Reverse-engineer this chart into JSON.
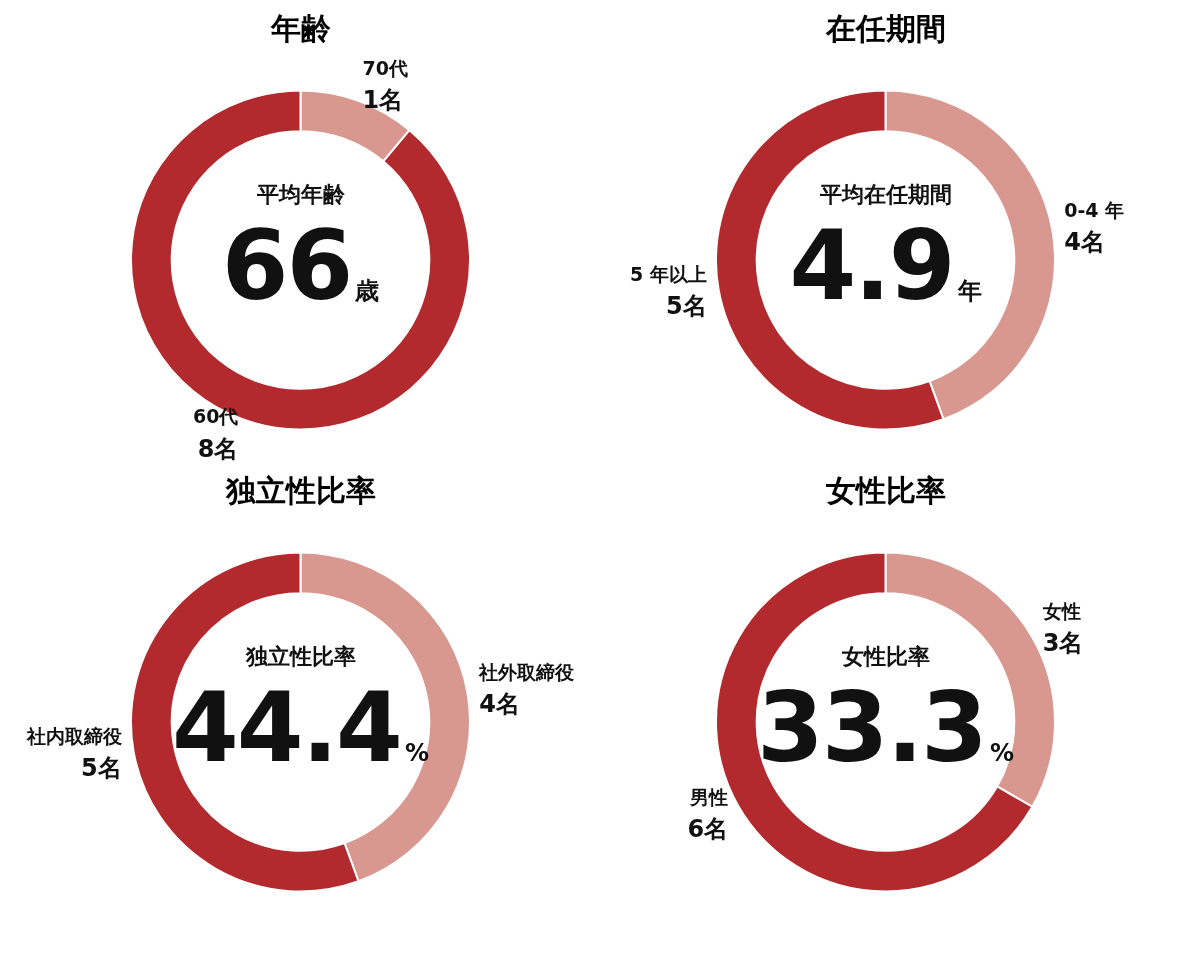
{
  "chart_data": [
    {
      "type": "donut",
      "title": "年齢",
      "categories": [
        "70代",
        "60代"
      ],
      "values": [
        1,
        8
      ],
      "colors": [
        "#d8978f",
        "#b22a2e"
      ],
      "value_labels": [
        "1名",
        "8名"
      ],
      "annotations": [
        "平均年齢",
        "66",
        "歳"
      ]
    },
    {
      "type": "donut",
      "title": "在任期間",
      "categories": [
        "0-4 年",
        "5 年以上"
      ],
      "values": [
        4,
        5
      ],
      "colors": [
        "#d8978f",
        "#b22a2e"
      ],
      "value_labels": [
        "4名",
        "5名"
      ],
      "annotations": [
        "平均在任期間",
        "4.9",
        "年"
      ]
    },
    {
      "type": "donut",
      "title": "独立性比率",
      "categories": [
        "社外取締役",
        "社内取締役"
      ],
      "values": [
        4,
        5
      ],
      "colors": [
        "#d8978f",
        "#b22a2e"
      ],
      "value_labels": [
        "4名",
        "5名"
      ],
      "annotations": [
        "独立性比率",
        "44.4",
        "%"
      ]
    },
    {
      "type": "donut",
      "title": "女性比率",
      "categories": [
        "女性",
        "男性"
      ],
      "values": [
        3,
        6
      ],
      "colors": [
        "#d8978f",
        "#b22a2e"
      ],
      "value_labels": [
        "3名",
        "6名"
      ],
      "annotations": [
        "女性比率",
        "33.3",
        "%"
      ]
    }
  ]
}
